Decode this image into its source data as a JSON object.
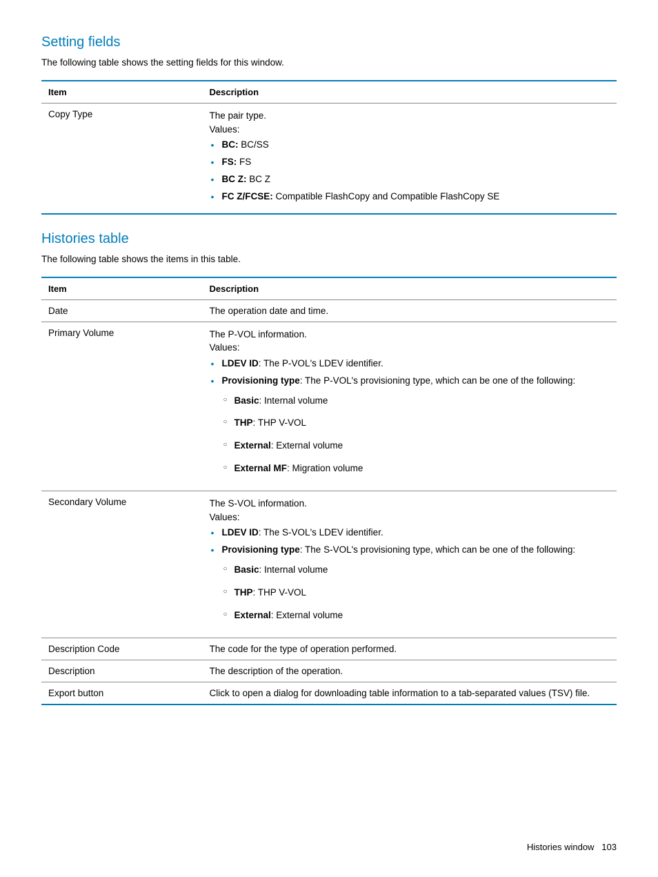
{
  "colors": {
    "heading": "#007dba",
    "thick_border": "#007dba",
    "thin_border": "#8a8a8a",
    "bullet": "#007dba",
    "subbullet": "#333333",
    "text": "#000000"
  },
  "fonts": {
    "heading_size_pt": 20,
    "body_size_pt": 13.5,
    "th_size_pt": 13,
    "footer_size_pt": 13
  },
  "section1": {
    "heading": "Setting fields",
    "intro": "The following table shows the setting fields for this window.",
    "th_item": "Item",
    "th_desc": "Description",
    "row1": {
      "item": "Copy Type",
      "line1": "The pair type.",
      "line2": "Values:",
      "b1_k": "BC:",
      "b1_v": " BC/SS",
      "b2_k": "FS:",
      "b2_v": " FS",
      "b3_k": "BC Z:",
      "b3_v": " BC Z",
      "b4_k": "FC Z/FCSE:",
      "b4_v": " Compatible FlashCopy and Compatible FlashCopy SE"
    }
  },
  "section2": {
    "heading": "Histories table",
    "intro": "The following table shows the items in this table.",
    "th_item": "Item",
    "th_desc": "Description",
    "r1": {
      "item": "Date",
      "desc": "The operation date and time."
    },
    "r2": {
      "item": "Primary Volume",
      "line1": "The P-VOL information.",
      "line2": "Values:",
      "b1_k": "LDEV ID",
      "b1_v": ": The P-VOL's LDEV identifier.",
      "b2_k": "Provisioning type",
      "b2_v": ": The P-VOL's provisioning type, which can be one of the following:",
      "s1_k": "Basic",
      "s1_v": ": Internal volume",
      "s2_k": "THP",
      "s2_v": ": THP V-VOL",
      "s3_k": "External",
      "s3_v": ": External volume",
      "s4_k": "External MF",
      "s4_v": ": Migration volume"
    },
    "r3": {
      "item": "Secondary Volume",
      "line1": "The S-VOL information.",
      "line2": "Values:",
      "b1_k": "LDEV ID",
      "b1_v": ": The S-VOL's LDEV identifier.",
      "b2_k": "Provisioning type",
      "b2_v": ": The S-VOL's provisioning type, which can be one of the following:",
      "s1_k": "Basic",
      "s1_v": ": Internal volume",
      "s2_k": "THP",
      "s2_v": ": THP V-VOL",
      "s3_k": "External",
      "s3_v": ": External volume"
    },
    "r4": {
      "item": "Description Code",
      "desc": "The code for the type of operation performed."
    },
    "r5": {
      "item": "Description",
      "desc": "The description of the operation."
    },
    "r6": {
      "item": "Export button",
      "desc": "Click to open a dialog for downloading table information to a tab-separated values (TSV) file."
    }
  },
  "footer": {
    "label": "Histories window",
    "page": "103"
  }
}
